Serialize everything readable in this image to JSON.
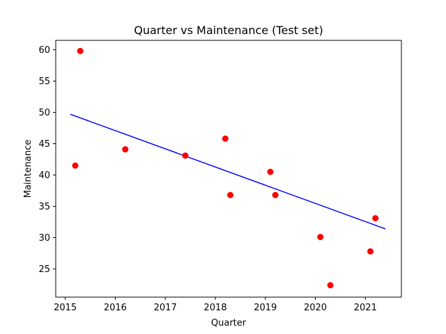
{
  "chart_data": {
    "type": "scatter",
    "title": "Quarter vs Maintenance (Test set)",
    "xlabel": "Quarter",
    "ylabel": "Maintenance",
    "xlim": [
      2014.81,
      2021.72
    ],
    "ylim": [
      20.5,
      61.5
    ],
    "xticks": [
      2015,
      2016,
      2017,
      2018,
      2019,
      2020,
      2021
    ],
    "yticks": [
      25,
      30,
      35,
      40,
      45,
      50,
      55,
      60
    ],
    "grid": false,
    "legend": "none",
    "series": [
      {
        "kind": "points",
        "color": "#ff0000",
        "points": [
          {
            "x": 2015.3,
            "y": 59.8
          },
          {
            "x": 2015.2,
            "y": 41.5
          },
          {
            "x": 2016.2,
            "y": 44.1
          },
          {
            "x": 2017.4,
            "y": 43.1
          },
          {
            "x": 2018.2,
            "y": 45.8
          },
          {
            "x": 2018.3,
            "y": 36.8
          },
          {
            "x": 2019.1,
            "y": 40.5
          },
          {
            "x": 2019.2,
            "y": 36.8
          },
          {
            "x": 2020.1,
            "y": 30.1
          },
          {
            "x": 2020.3,
            "y": 22.4
          },
          {
            "x": 2021.1,
            "y": 27.8
          },
          {
            "x": 2021.2,
            "y": 33.1
          }
        ]
      },
      {
        "kind": "line",
        "color": "#0000ff",
        "points": [
          {
            "x": 2015.1,
            "y": 49.7
          },
          {
            "x": 2021.4,
            "y": 31.4
          }
        ]
      }
    ]
  }
}
